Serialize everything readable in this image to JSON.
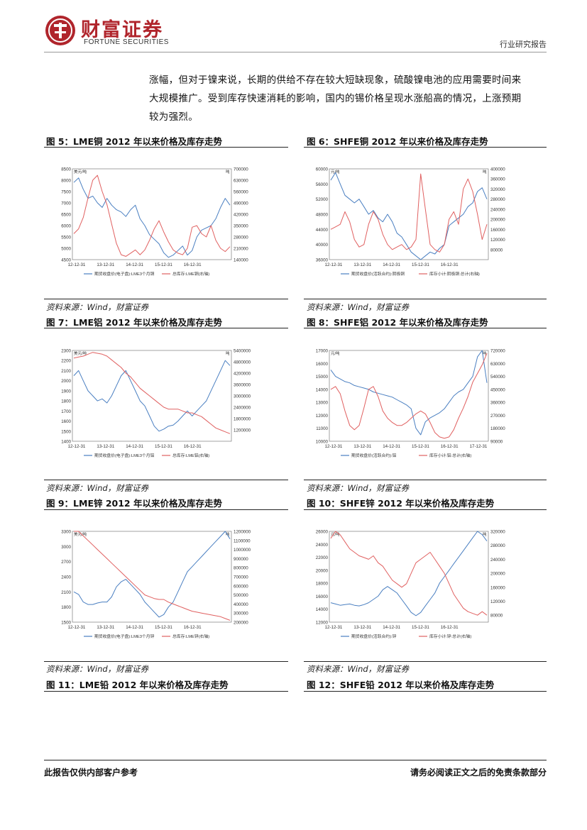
{
  "header": {
    "logo_cn": "财富证券",
    "logo_en": "FORTUNE SECURITIES",
    "report_type": "行业研究报告"
  },
  "paragraph": [
    "涨幅，但对于镍来说，长期的供给不存在较大短缺现象，硫酸镍电池的应用需要时间来",
    "大规模推广。受到库存快速消耗的影响，国内的锡价格呈现水涨船高的情况，上涨预期",
    "较为强烈。"
  ],
  "figures": [
    {
      "title": "图 5：LME铜 2012 年以来价格及库存走势",
      "source": "资料来源：Wind，财富证券"
    },
    {
      "title": "图 6：SHFE铜 2012 年以来价格及库存走势",
      "source": "资料来源：Wind，财富证券"
    },
    {
      "title": "图 7：LME铝 2012 年以来价格及库存走势",
      "source": "资料来源：Wind，财富证券"
    },
    {
      "title": "图 8：SHFE铝 2012 年以来价格及库存走势",
      "source": "资料来源：Wind，财富证券"
    },
    {
      "title": "图 9：LME锌 2012 年以来价格及库存走势",
      "source": "资料来源：Wind，财富证券"
    },
    {
      "title": "图 10：SHFE锌 2012 年以来价格及库存走势",
      "source": "资料来源：Wind，财富证券"
    }
  ],
  "trailing_figures": [
    {
      "title": "图 11：LME铅 2012 年以来价格及库存走势"
    },
    {
      "title": "图 12：SHFE铅 2012 年以来价格及库存走势"
    }
  ],
  "chart_data": [
    {
      "type": "line",
      "left_unit": "美元/吨",
      "right_unit": "吨",
      "ylim": [
        4500,
        8500
      ],
      "yticks": [
        4500,
        5000,
        5500,
        6000,
        6500,
        7000,
        7500,
        8000,
        8500
      ],
      "y2lim": [
        140000,
        700000
      ],
      "y2ticks": [
        140000,
        210000,
        280000,
        350000,
        420000,
        490000,
        560000,
        630000,
        700000
      ],
      "xticks": [
        "12-12-31",
        "13-12-31",
        "14-12-31",
        "15-12-31",
        "16-12-31"
      ],
      "series": [
        {
          "name": "期货收盘价(电子盘):LME3个月铜",
          "axis": "left",
          "values": [
            7900,
            8100,
            7600,
            7200,
            7300,
            7000,
            6800,
            7200,
            6900,
            6700,
            6600,
            6400,
            6700,
            6900,
            6300,
            6000,
            5600,
            5400,
            5200,
            4800,
            4600,
            4700,
            4900,
            5100,
            4700,
            4900,
            5500,
            5800,
            5900,
            6000,
            6300,
            6800,
            7200,
            6900
          ]
        },
        {
          "name": "总库存:LME铜(右轴)",
          "axis": "left2",
          "values": [
            300000,
            330000,
            400000,
            520000,
            630000,
            660000,
            560000,
            480000,
            360000,
            240000,
            170000,
            160000,
            180000,
            200000,
            170000,
            200000,
            260000,
            330000,
            380000,
            310000,
            250000,
            200000,
            180000,
            170000,
            210000,
            340000,
            350000,
            300000,
            280000,
            350000,
            260000,
            210000,
            190000,
            220000
          ]
        }
      ]
    },
    {
      "type": "line",
      "left_unit": "元/吨",
      "right_unit": "吨",
      "ylim": [
        36000,
        60000
      ],
      "yticks": [
        36000,
        40000,
        44000,
        48000,
        52000,
        56000,
        60000
      ],
      "y2lim": [
        40000,
        400000
      ],
      "y2ticks": [
        80000,
        120000,
        160000,
        200000,
        240000,
        280000,
        320000,
        360000,
        400000
      ],
      "xticks": [
        "12-12-31",
        "13-12-31",
        "14-12-31",
        "15-12-31",
        "16-12-31"
      ],
      "series": [
        {
          "name": "期货收盘价(活跃合约):阴极铜",
          "axis": "left",
          "values": [
            57000,
            59000,
            56000,
            53000,
            52000,
            51000,
            52000,
            50000,
            48000,
            49000,
            47000,
            46000,
            48000,
            46000,
            43000,
            42000,
            40000,
            38000,
            37000,
            36000,
            37000,
            38000,
            37500,
            39000,
            40000,
            45000,
            46000,
            47000,
            48000,
            50000,
            51000,
            54000,
            55000,
            52000
          ]
        },
        {
          "name": "库存小计:阴极铜:总计(右轴)",
          "axis": "right",
          "values": [
            160000,
            170000,
            180000,
            230000,
            190000,
            120000,
            90000,
            100000,
            180000,
            230000,
            200000,
            140000,
            100000,
            80000,
            90000,
            100000,
            80000,
            90000,
            120000,
            380000,
            240000,
            100000,
            80000,
            70000,
            100000,
            200000,
            230000,
            180000,
            320000,
            360000,
            310000,
            220000,
            120000,
            180000
          ]
        }
      ]
    },
    {
      "type": "line",
      "left_unit": "美元/吨",
      "right_unit": "吨",
      "ylim": [
        1400,
        2300
      ],
      "yticks": [
        1400,
        1500,
        1600,
        1700,
        1800,
        1900,
        2000,
        2100,
        2200,
        2300
      ],
      "y2lim": [
        600000,
        5400000
      ],
      "y2ticks": [
        1200000,
        1800000,
        2400000,
        3000000,
        3600000,
        4200000,
        4800000,
        5400000
      ],
      "xticks": [
        "12-12-31",
        "13-12-31",
        "14-12-31",
        "15-12-31",
        "16-12-31"
      ],
      "series": [
        {
          "name": "期货收盘价(电子盘):LME3个月铝",
          "axis": "left",
          "values": [
            2050,
            2100,
            2000,
            1900,
            1850,
            1800,
            1820,
            1780,
            1850,
            1950,
            2050,
            2100,
            2000,
            1900,
            1800,
            1750,
            1650,
            1550,
            1500,
            1520,
            1550,
            1560,
            1600,
            1650,
            1700,
            1650,
            1700,
            1750,
            1800,
            1900,
            2000,
            2100,
            2200,
            2150
          ]
        },
        {
          "name": "总库存:LME铝(右轴)",
          "axis": "right",
          "values": [
            5000000,
            5050000,
            5100000,
            5200000,
            5300000,
            5250000,
            5200000,
            5100000,
            4900000,
            4700000,
            4500000,
            4200000,
            4000000,
            3700000,
            3400000,
            3200000,
            3000000,
            2800000,
            2600000,
            2400000,
            2300000,
            2300000,
            2300000,
            2200000,
            2100000,
            2100000,
            2000000,
            1900000,
            1700000,
            1500000,
            1300000,
            1200000,
            1100000,
            1000000
          ]
        }
      ]
    },
    {
      "type": "line",
      "left_unit": "元/吨",
      "right_unit": "吨",
      "ylim": [
        10000,
        17000
      ],
      "yticks": [
        10000,
        11000,
        12000,
        13000,
        14000,
        15000,
        16000,
        17000
      ],
      "y2lim": [
        90000,
        720000
      ],
      "y2ticks": [
        90000,
        180000,
        270000,
        360000,
        450000,
        540000,
        630000,
        720000
      ],
      "xticks": [
        "12-12-31",
        "13-12-31",
        "14-12-31",
        "15-12-31",
        "16-12-31",
        "17-12-31"
      ],
      "series": [
        {
          "name": "期货收盘价(活跃合约):铝",
          "axis": "left",
          "values": [
            15500,
            15000,
            14800,
            14600,
            14500,
            14300,
            14200,
            14100,
            14000,
            13800,
            13700,
            13600,
            13500,
            13400,
            13200,
            13000,
            12800,
            12500,
            11000,
            10500,
            11500,
            11800,
            12000,
            12200,
            12500,
            13000,
            13500,
            13800,
            14000,
            14500,
            15000,
            16500,
            17000,
            14500
          ]
        },
        {
          "name": "库存小计:铝:总计(右轴)",
          "axis": "right",
          "values": [
            450000,
            470000,
            420000,
            300000,
            200000,
            170000,
            200000,
            320000,
            450000,
            470000,
            400000,
            300000,
            250000,
            220000,
            200000,
            200000,
            220000,
            250000,
            280000,
            300000,
            280000,
            220000,
            150000,
            120000,
            110000,
            120000,
            170000,
            250000,
            320000,
            400000,
            500000,
            560000,
            620000,
            700000
          ]
        }
      ]
    },
    {
      "type": "line",
      "left_unit": "美元/吨",
      "right_unit": "吨",
      "ylim": [
        1500,
        3300
      ],
      "yticks": [
        1500,
        1800,
        2100,
        2400,
        2700,
        3000,
        3300
      ],
      "y2lim": [
        200000,
        1200000
      ],
      "y2ticks": [
        200000,
        300000,
        400000,
        500000,
        600000,
        700000,
        800000,
        900000,
        1000000,
        1100000,
        1200000
      ],
      "xticks": [
        "12-12-31",
        "13-12-31",
        "14-12-31",
        "15-12-31",
        "16-12-31"
      ],
      "series": [
        {
          "name": "期货收盘价(电子盘):LME3个月锌",
          "axis": "left",
          "values": [
            2100,
            2050,
            1900,
            1850,
            1850,
            1880,
            1900,
            1900,
            2000,
            2200,
            2300,
            2350,
            2250,
            2150,
            2050,
            1900,
            1800,
            1700,
            1600,
            1650,
            1800,
            1900,
            2100,
            2300,
            2500,
            2600,
            2700,
            2800,
            2900,
            3000,
            3100,
            3200,
            3300,
            3150
          ]
        },
        {
          "name": "总库存:LME锌(右轴)",
          "axis": "right",
          "values": [
            1200000,
            1210000,
            1150000,
            1100000,
            1050000,
            1000000,
            950000,
            900000,
            850000,
            800000,
            750000,
            700000,
            650000,
            600000,
            550000,
            500000,
            480000,
            460000,
            450000,
            450000,
            420000,
            400000,
            380000,
            360000,
            340000,
            320000,
            310000,
            300000,
            290000,
            280000,
            270000,
            260000,
            240000,
            220000
          ]
        }
      ]
    },
    {
      "type": "line",
      "left_unit": "元/吨",
      "right_unit": "吨",
      "ylim": [
        12000,
        26000
      ],
      "yticks": [
        12000,
        14000,
        16000,
        18000,
        20000,
        22000,
        24000,
        26000
      ],
      "y2lim": [
        60000,
        320000
      ],
      "y2ticks": [
        80000,
        120000,
        160000,
        200000,
        240000,
        280000,
        320000
      ],
      "xticks": [
        "12-12-31",
        "13-12-31",
        "14-12-31",
        "15-12-31",
        "16-12-31"
      ],
      "series": [
        {
          "name": "期货收盘价(活跃合约):锌",
          "axis": "left",
          "values": [
            15000,
            14800,
            14600,
            14700,
            14800,
            14600,
            14500,
            14700,
            15000,
            15500,
            16000,
            17000,
            17500,
            17000,
            16500,
            15500,
            14500,
            13500,
            13000,
            13500,
            14500,
            15500,
            16500,
            18000,
            19000,
            20000,
            21000,
            22000,
            23000,
            24000,
            25000,
            26000,
            25500,
            24500
          ]
        },
        {
          "name": "库存小计:锌:总计(右轴)",
          "axis": "right",
          "values": [
            300000,
            320000,
            310000,
            290000,
            270000,
            260000,
            250000,
            245000,
            240000,
            250000,
            230000,
            220000,
            200000,
            180000,
            170000,
            160000,
            170000,
            200000,
            230000,
            240000,
            250000,
            260000,
            240000,
            220000,
            200000,
            170000,
            140000,
            120000,
            100000,
            90000,
            85000,
            80000,
            90000,
            80000
          ]
        }
      ]
    }
  ],
  "footer": {
    "left": "此报告仅供内部客户参考",
    "right": "请务必阅读正文之后的免责条款部分"
  }
}
